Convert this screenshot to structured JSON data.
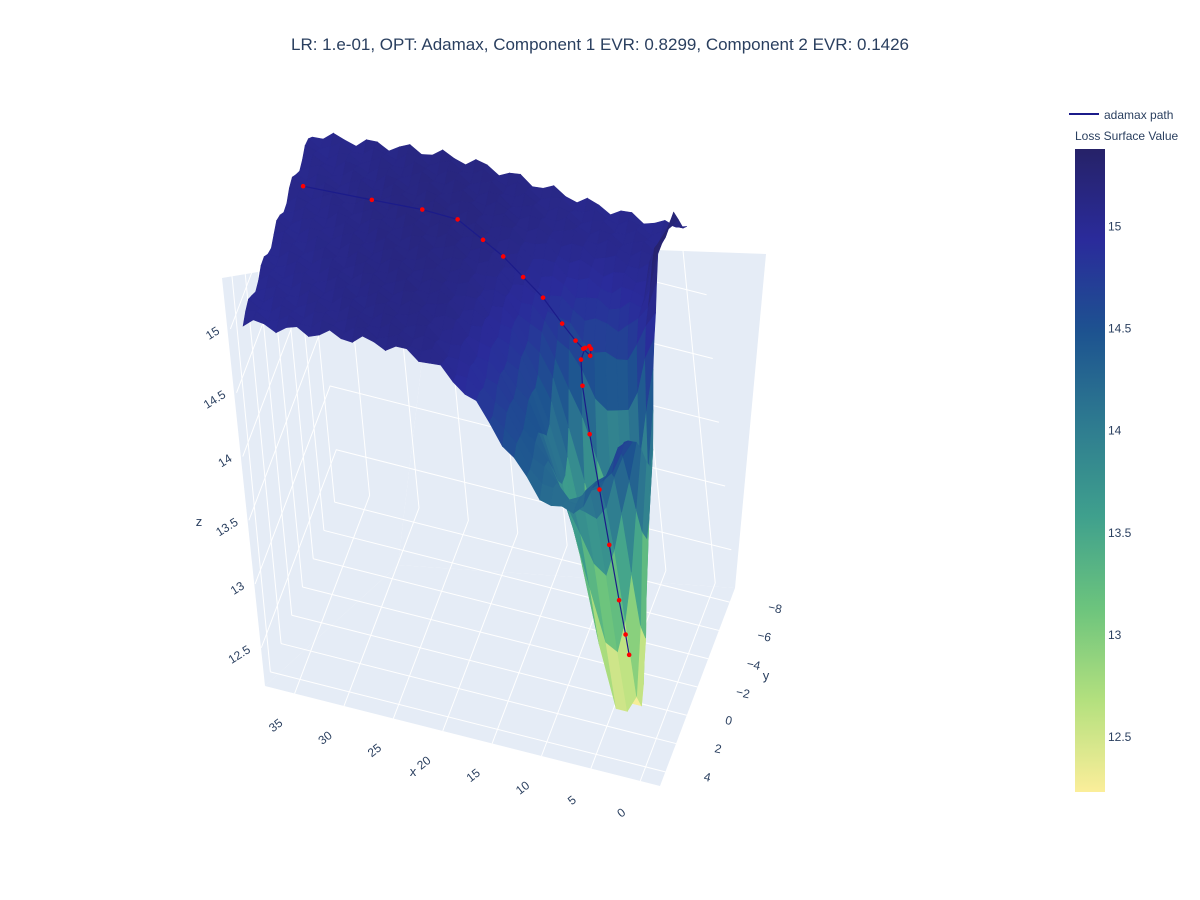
{
  "chart_data": {
    "type": "surface3d",
    "title": "LR: 1.e-01, OPT: Adamax, Component 1 EVR: 0.8299, Component 2 EVR: 0.1426",
    "xlabel": "x",
    "ylabel": "y",
    "zlabel": "z",
    "x_ticks": [
      "35",
      "30",
      "25",
      "20",
      "15",
      "10",
      "5",
      "0"
    ],
    "y_ticks": [
      "−8",
      "−6",
      "−4",
      "−2",
      "0",
      "2",
      "4"
    ],
    "z_ticks": [
      "15",
      "14.5",
      "14",
      "13.5",
      "13",
      "12.5"
    ],
    "xlim": [
      -2,
      38
    ],
    "ylim": [
      -9,
      5
    ],
    "zlim": [
      12.2,
      15.4
    ],
    "legend": [
      {
        "name": "adamax path",
        "color": "#1b1b8a"
      }
    ],
    "colorbar": {
      "title": "Loss Surface Value",
      "ticks": [
        "15",
        "14.5",
        "14",
        "13.5",
        "13",
        "12.5"
      ],
      "range": [
        12.23,
        15.38
      ],
      "colorscale": [
        "#fbee9a",
        "#b3e07e",
        "#6cc47d",
        "#3fa08d",
        "#2e7b90",
        "#1d5390",
        "#2a2b9b",
        "#262268"
      ]
    },
    "surface": {
      "description_z_min": 12.23,
      "z_max": 15.38
    },
    "path": {
      "name": "adamax path",
      "line_color": "#1b1b8a",
      "marker_color": "#ff0000",
      "points": [
        {
          "x": 36,
          "y": -5.0,
          "z": 15.05
        },
        {
          "x": 29,
          "y": -5.0,
          "z": 15.08
        },
        {
          "x": 24,
          "y": -5.2,
          "z": 15.08
        },
        {
          "x": 20.5,
          "y": -5.3,
          "z": 15.06
        },
        {
          "x": 18,
          "y": -5.2,
          "z": 14.96
        },
        {
          "x": 16,
          "y": -5.1,
          "z": 14.88
        },
        {
          "x": 14,
          "y": -4.9,
          "z": 14.78
        },
        {
          "x": 12,
          "y": -4.7,
          "z": 14.68
        },
        {
          "x": 10,
          "y": -4.3,
          "z": 14.56
        },
        {
          "x": 8.5,
          "y": -3.9,
          "z": 14.5
        },
        {
          "x": 7.5,
          "y": -3.5,
          "z": 14.5
        },
        {
          "x": 6.5,
          "y": -3.0,
          "z": 14.52
        },
        {
          "x": 6.0,
          "y": -2.5,
          "z": 14.64
        },
        {
          "x": 5.8,
          "y": -2.0,
          "z": 14.72
        },
        {
          "x": 5.9,
          "y": -1.5,
          "z": 14.76
        },
        {
          "x": 6.1,
          "y": -1.0,
          "z": 14.72
        },
        {
          "x": 6.0,
          "y": -0.7,
          "z": 14.55
        },
        {
          "x": 5.6,
          "y": -0.5,
          "z": 14.2
        },
        {
          "x": 5.0,
          "y": -0.3,
          "z": 13.8
        },
        {
          "x": 4.4,
          "y": -0.1,
          "z": 13.4
        },
        {
          "x": 3.8,
          "y": 0.1,
          "z": 13.0
        },
        {
          "x": 3.4,
          "y": 0.2,
          "z": 12.75
        },
        {
          "x": 3.2,
          "y": 0.25,
          "z": 12.6
        }
      ]
    }
  }
}
